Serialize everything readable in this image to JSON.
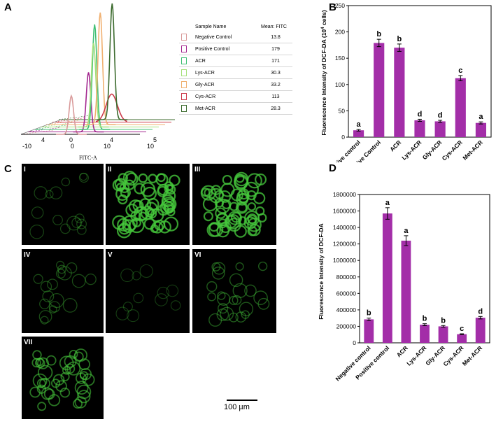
{
  "panels": {
    "A": "A",
    "B": "B",
    "C": "C",
    "D": "D"
  },
  "legend": {
    "header_name": "Sample Name",
    "header_mean": "Mean: FITC",
    "rows": [
      {
        "name": "Negative Control",
        "mean": "13.8",
        "color": "#d99a9a"
      },
      {
        "name": "Positive Control",
        "mean": "179",
        "color": "#a3278f"
      },
      {
        "name": "ACR",
        "mean": "171",
        "color": "#3fbf73"
      },
      {
        "name": "Lys-ACR",
        "mean": "30.3",
        "color": "#a6e07a"
      },
      {
        "name": "Gly-ACR",
        "mean": "33.2",
        "color": "#f0b070"
      },
      {
        "name": "Cys-ACR",
        "mean": "113",
        "color": "#cc3a4a"
      },
      {
        "name": "Met-ACR",
        "mean": "28.3",
        "color": "#3c6b2e"
      }
    ]
  },
  "flow": {
    "xlabel": "FITC-A",
    "front_ticks": [
      "-10",
      "0",
      "10"
    ],
    "back_ticks": [
      "4",
      "4",
      "5"
    ],
    "depth_ticks": [
      "0",
      "10"
    ]
  },
  "micrographs": {
    "labels": [
      "I",
      "II",
      "III",
      "IV",
      "V",
      "VI",
      "VII"
    ],
    "scale_label": "100 µm"
  },
  "chart_data": [
    {
      "type": "bar",
      "panel": "B",
      "ylabel_main": "Fluorescence Intensity of DCF-DA (10",
      "ylabel_sup": "4",
      "ylabel_end": " cells)",
      "categories": [
        "Negative control",
        "Positive Control",
        "ACR",
        "Lys-ACR",
        "Gly-ACR",
        "Cys-ACR",
        "Met-ACR"
      ],
      "values": [
        13,
        179,
        170,
        32,
        30,
        112,
        27
      ],
      "errors": [
        1.5,
        7,
        7,
        2,
        2,
        5,
        2
      ],
      "letters": [
        "a",
        "b",
        "b",
        "d",
        "d",
        "c",
        "a"
      ],
      "ylim": [
        0,
        250
      ],
      "yticks": [
        "0",
        "50",
        "100",
        "150",
        "200",
        "250"
      ],
      "bar_color": "#a32ea8"
    },
    {
      "type": "bar",
      "panel": "D",
      "ylabel": "Fluorescence Intensity of DCF-DA",
      "categories": [
        "Negative control",
        "Positive control",
        "ACR",
        "Lys-ACR",
        "Gly-ACR",
        "Cys-ACR",
        "Met-ACR"
      ],
      "values": [
        285000,
        1570000,
        1240000,
        220000,
        200000,
        105000,
        305000
      ],
      "errors": [
        15000,
        70000,
        60000,
        12000,
        10000,
        5000,
        15000
      ],
      "letters": [
        "b",
        "a",
        "a",
        "b",
        "b",
        "c",
        "d"
      ],
      "ylim": [
        0,
        1800000
      ],
      "yticks": [
        "0",
        "200000",
        "400000",
        "600000",
        "800000",
        "1000000",
        "1200000",
        "1400000",
        "1600000",
        "1800000"
      ],
      "bar_color": "#a32ea8"
    }
  ]
}
